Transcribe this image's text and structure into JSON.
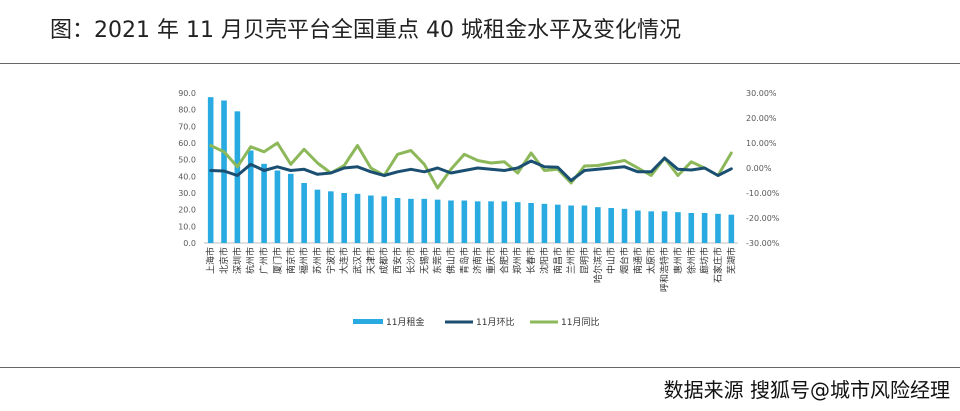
{
  "title": "图：2021 年 11 月贝壳平台全国重点 40 城租金水平及变化情况",
  "footer": "数据来源 搜狐号@城市风险经理",
  "colors": {
    "rent": "#29abe2",
    "mom": "#1b4f72",
    "yoy": "#8db85a"
  },
  "chart_data": {
    "type": "bar+line",
    "categories": [
      "上海市",
      "北京市",
      "深圳市",
      "杭州市",
      "广州市",
      "厦门市",
      "南京市",
      "福州市",
      "苏州市",
      "宁波市",
      "大连市",
      "武汉市",
      "天津市",
      "成都市",
      "西安市",
      "长沙市",
      "无锡市",
      "东莞市",
      "佛山市",
      "青岛市",
      "济南市",
      "重庆市",
      "合肥市",
      "郑州市",
      "长春市",
      "沈阳市",
      "南昌市",
      "兰州市",
      "昆明市",
      "哈尔滨市",
      "中山市",
      "烟台市",
      "南通市",
      "太原市",
      "呼和浩特市",
      "惠州市",
      "徐州市",
      "廊坊市",
      "石家庄市",
      "芜湖市"
    ],
    "y_left": {
      "range": [
        0,
        90
      ],
      "ticks": [
        "0.0",
        "10.0",
        "20.0",
        "30.0",
        "40.0",
        "50.0",
        "60.0",
        "70.0",
        "80.0",
        "90.0"
      ]
    },
    "y_right": {
      "range": [
        -30,
        30
      ],
      "ticks": [
        "-30.00%",
        "-20.00%",
        "-10.00%",
        "0.00%",
        "10.00%",
        "20.00%",
        "30.00%"
      ]
    },
    "series": [
      {
        "name": "11月租金",
        "type": "bar",
        "axis": "left",
        "values": [
          87.5,
          85.5,
          79,
          55.5,
          47.5,
          43.5,
          41.5,
          36,
          32,
          31,
          30,
          29.5,
          28.5,
          28,
          27,
          26.5,
          26.5,
          26,
          25.5,
          25.5,
          25,
          25,
          25,
          24.5,
          24,
          23.5,
          23,
          22.5,
          22.5,
          21.5,
          21,
          20.5,
          19.5,
          19,
          19,
          18.5,
          18,
          18,
          17.5,
          17
        ]
      },
      {
        "name": "11月环比",
        "type": "line",
        "axis": "right",
        "values": [
          -1,
          -1.2,
          -3,
          1.5,
          -1,
          0.5,
          -1,
          -0.5,
          -2.5,
          -2,
          0,
          0.5,
          -1.5,
          -3,
          -1.5,
          -0.5,
          -1.5,
          0,
          -2,
          -1,
          0,
          -0.5,
          -1,
          0,
          2.8,
          0.5,
          0.3,
          -5,
          -1,
          -0.5,
          0,
          0.5,
          -1.5,
          -1.5,
          4,
          -0.5,
          -0.8,
          0,
          -3,
          -0.3
        ]
      },
      {
        "name": "11月同比",
        "type": "line",
        "axis": "right",
        "values": [
          9,
          6.5,
          0.5,
          8.5,
          6.5,
          10,
          1.5,
          7.5,
          2,
          -2,
          1,
          9,
          0,
          -3,
          5.5,
          7,
          1.5,
          -8,
          -0.5,
          5.5,
          3,
          2,
          2.5,
          -2,
          6,
          -1,
          -0.5,
          -6,
          0.8,
          1,
          2,
          3,
          0,
          -3,
          4,
          -3,
          2.5,
          0,
          -3,
          6
        ]
      }
    ],
    "legend_position": "bottom"
  }
}
